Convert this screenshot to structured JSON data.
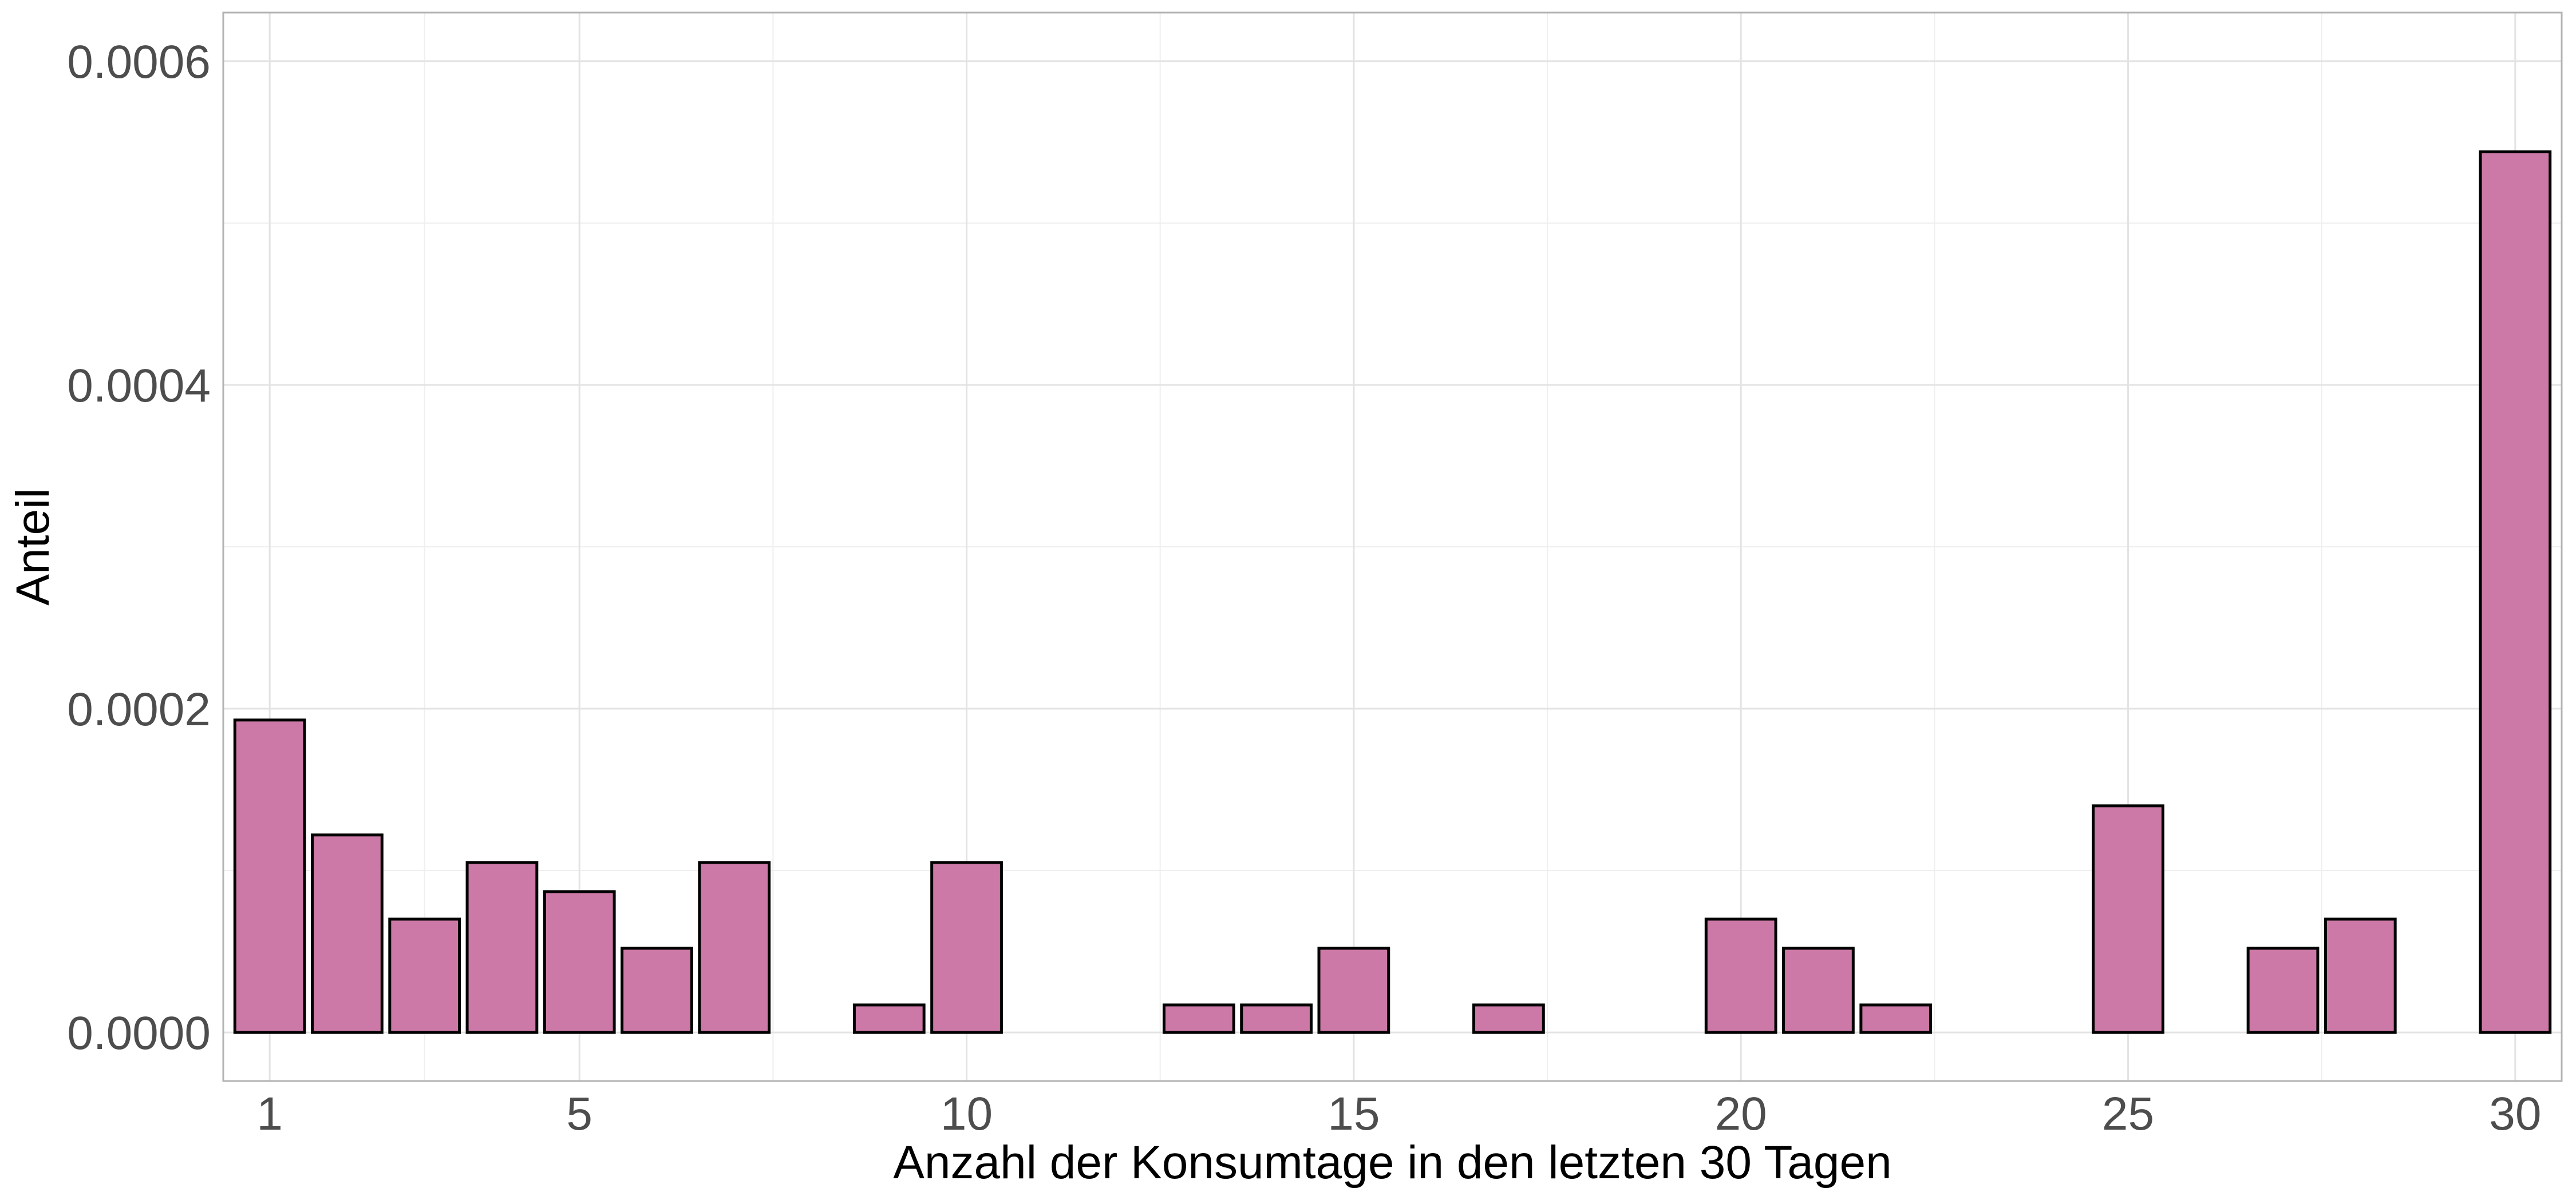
{
  "chart_data": {
    "type": "bar",
    "title": "",
    "xlabel": "Anzahl der Konsumtage in den letzten 30 Tagen",
    "ylabel": "Anteil",
    "x": [
      1,
      2,
      3,
      4,
      5,
      6,
      7,
      9,
      10,
      13,
      14,
      15,
      17,
      20,
      21,
      22,
      25,
      27,
      28,
      30
    ],
    "values": [
      0.000193,
      0.000122,
      7e-05,
      0.000105,
      8.7e-05,
      5.2e-05,
      0.000105,
      1.7e-05,
      0.000105,
      1.7e-05,
      1.7e-05,
      5.2e-05,
      1.7e-05,
      7e-05,
      5.2e-05,
      1.7e-05,
      0.00014,
      5.2e-05,
      7e-05,
      0.000544
    ],
    "xlim": [
      0.4,
      30.6
    ],
    "ylim": [
      -3e-05,
      0.00063
    ],
    "x_ticks": [
      "1",
      "5",
      "10",
      "15",
      "20",
      "25",
      "30"
    ],
    "y_ticks": [
      "0.0000",
      "0.0002",
      "0.0004",
      "0.0006"
    ],
    "grid": true,
    "legend": "none",
    "colors": {
      "bar_fill": "#CC79A7",
      "bar_outline": "#000000",
      "grid": "#e3e3e3",
      "panel_border": "#b3b3b3"
    }
  }
}
